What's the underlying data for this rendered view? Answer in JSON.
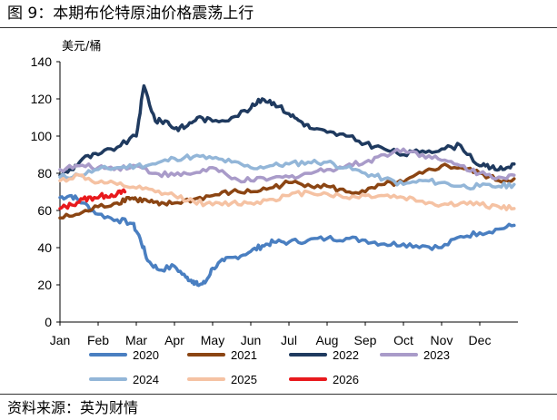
{
  "header": {
    "title": "图 9：本期布伦特原油价格震荡上行"
  },
  "footer": {
    "source": "资料来源：英为财情"
  },
  "chart_data": {
    "type": "line",
    "title": "",
    "ylabel": "美元/桶",
    "xlabel": "",
    "ylim": [
      0,
      140
    ],
    "yticks": [
      0,
      20,
      40,
      60,
      80,
      100,
      120,
      140
    ],
    "x_unit": "month",
    "xlim": [
      0,
      12
    ],
    "categories": [
      "Jan",
      "Feb",
      "Mar",
      "Apr",
      "May",
      "Jun",
      "Jul",
      "Aug",
      "Sep",
      "Oct",
      "Nov",
      "Dec"
    ],
    "legend": "bottom",
    "grid": false,
    "series": [
      {
        "name": "2020",
        "color": "#4A7FC1",
        "x": [
          0,
          0.3,
          0.6,
          1,
          1.5,
          1.9,
          2.1,
          2.3,
          2.6,
          3,
          3.3,
          3.5,
          3.6,
          3.8,
          4,
          4.3,
          4.6,
          5,
          5.3,
          5.6,
          6,
          6.5,
          7,
          7.5,
          8,
          8.5,
          9,
          9.5,
          10,
          10.5,
          11,
          11.5,
          11.9
        ],
        "values": [
          67,
          68,
          64,
          58,
          55,
          53,
          45,
          33,
          28,
          30,
          24,
          22,
          20,
          21,
          29,
          33,
          35,
          38,
          41,
          43,
          43,
          44,
          45,
          45,
          44,
          42,
          42,
          41,
          40,
          46,
          48,
          50,
          52
        ]
      },
      {
        "name": "2021",
        "color": "#8B4513",
        "x": [
          0,
          0.5,
          1,
          1.5,
          1.8,
          2,
          2.3,
          2.6,
          3,
          3.5,
          4,
          4.5,
          5,
          5.5,
          6,
          6.5,
          7,
          7.5,
          8,
          8.5,
          9,
          9.5,
          10,
          10.5,
          11,
          11.5,
          11.9
        ],
        "values": [
          56,
          58,
          62,
          64,
          67,
          66,
          65,
          63,
          64,
          66,
          68,
          70,
          70,
          72,
          75,
          74,
          73,
          70,
          70,
          74,
          75,
          80,
          84,
          83,
          80,
          76,
          77
        ]
      },
      {
        "name": "2022",
        "color": "#1F3A5F",
        "x": [
          0,
          0.3,
          0.6,
          1,
          1.5,
          2,
          2.2,
          2.5,
          2.8,
          3,
          3.3,
          3.6,
          4,
          4.5,
          5,
          5.3,
          5.6,
          6,
          6.3,
          6.6,
          7,
          7.5,
          8,
          8.5,
          9,
          9.5,
          10,
          10.5,
          11,
          11.3,
          11.6,
          11.9
        ],
        "values": [
          79,
          82,
          88,
          90,
          94,
          100,
          127,
          108,
          108,
          104,
          105,
          110,
          108,
          110,
          115,
          120,
          118,
          112,
          108,
          104,
          102,
          100,
          96,
          93,
          90,
          92,
          93,
          95,
          84,
          83,
          82,
          85
        ]
      },
      {
        "name": "2023",
        "color": "#A99BC9",
        "x": [
          0,
          0.5,
          1,
          1.5,
          2,
          2.5,
          3,
          3.5,
          4,
          4.5,
          5,
          5.5,
          6,
          6.5,
          7,
          7.5,
          8,
          8.5,
          9,
          9.5,
          10,
          10.5,
          11,
          11.5,
          11.9
        ],
        "values": [
          82,
          84,
          83,
          83,
          84,
          80,
          79,
          80,
          83,
          77,
          76,
          77,
          78,
          80,
          82,
          84,
          86,
          90,
          93,
          90,
          87,
          84,
          80,
          78,
          79
        ]
      },
      {
        "name": "2024",
        "color": "#93B6D8",
        "x": [
          0,
          0.5,
          1,
          1.5,
          2,
          2.5,
          3,
          3.5,
          4,
          4.5,
          5,
          5.5,
          6,
          6.5,
          7,
          7.5,
          8,
          8.5,
          9,
          9.5,
          10,
          10.5,
          11,
          11.5,
          11.9
        ],
        "values": [
          78,
          79,
          82,
          83,
          84,
          85,
          88,
          89,
          88,
          86,
          83,
          84,
          85,
          86,
          86,
          83,
          80,
          77,
          74,
          76,
          75,
          73,
          73,
          73,
          74
        ]
      },
      {
        "name": "2025",
        "color": "#F5C2A3",
        "x": [
          0,
          0.5,
          1,
          1.5,
          2,
          2.5,
          3,
          3.5,
          4,
          4.5,
          5,
          5.5,
          6,
          6.5,
          7,
          7.5,
          8,
          8.5,
          9,
          9.5,
          10,
          10.5,
          11,
          11.5,
          11.9
        ],
        "values": [
          76,
          79,
          75,
          74,
          72,
          70,
          68,
          65,
          63,
          64,
          64,
          66,
          68,
          70,
          69,
          67,
          68,
          68,
          67,
          65,
          63,
          64,
          63,
          62,
          61
        ]
      },
      {
        "name": "2026",
        "color": "#E8191D",
        "x": [
          0,
          0.3,
          0.6,
          0.9,
          1.2,
          1.5,
          1.7
        ],
        "values": [
          61,
          63,
          66,
          67,
          68,
          69,
          70
        ]
      }
    ]
  }
}
